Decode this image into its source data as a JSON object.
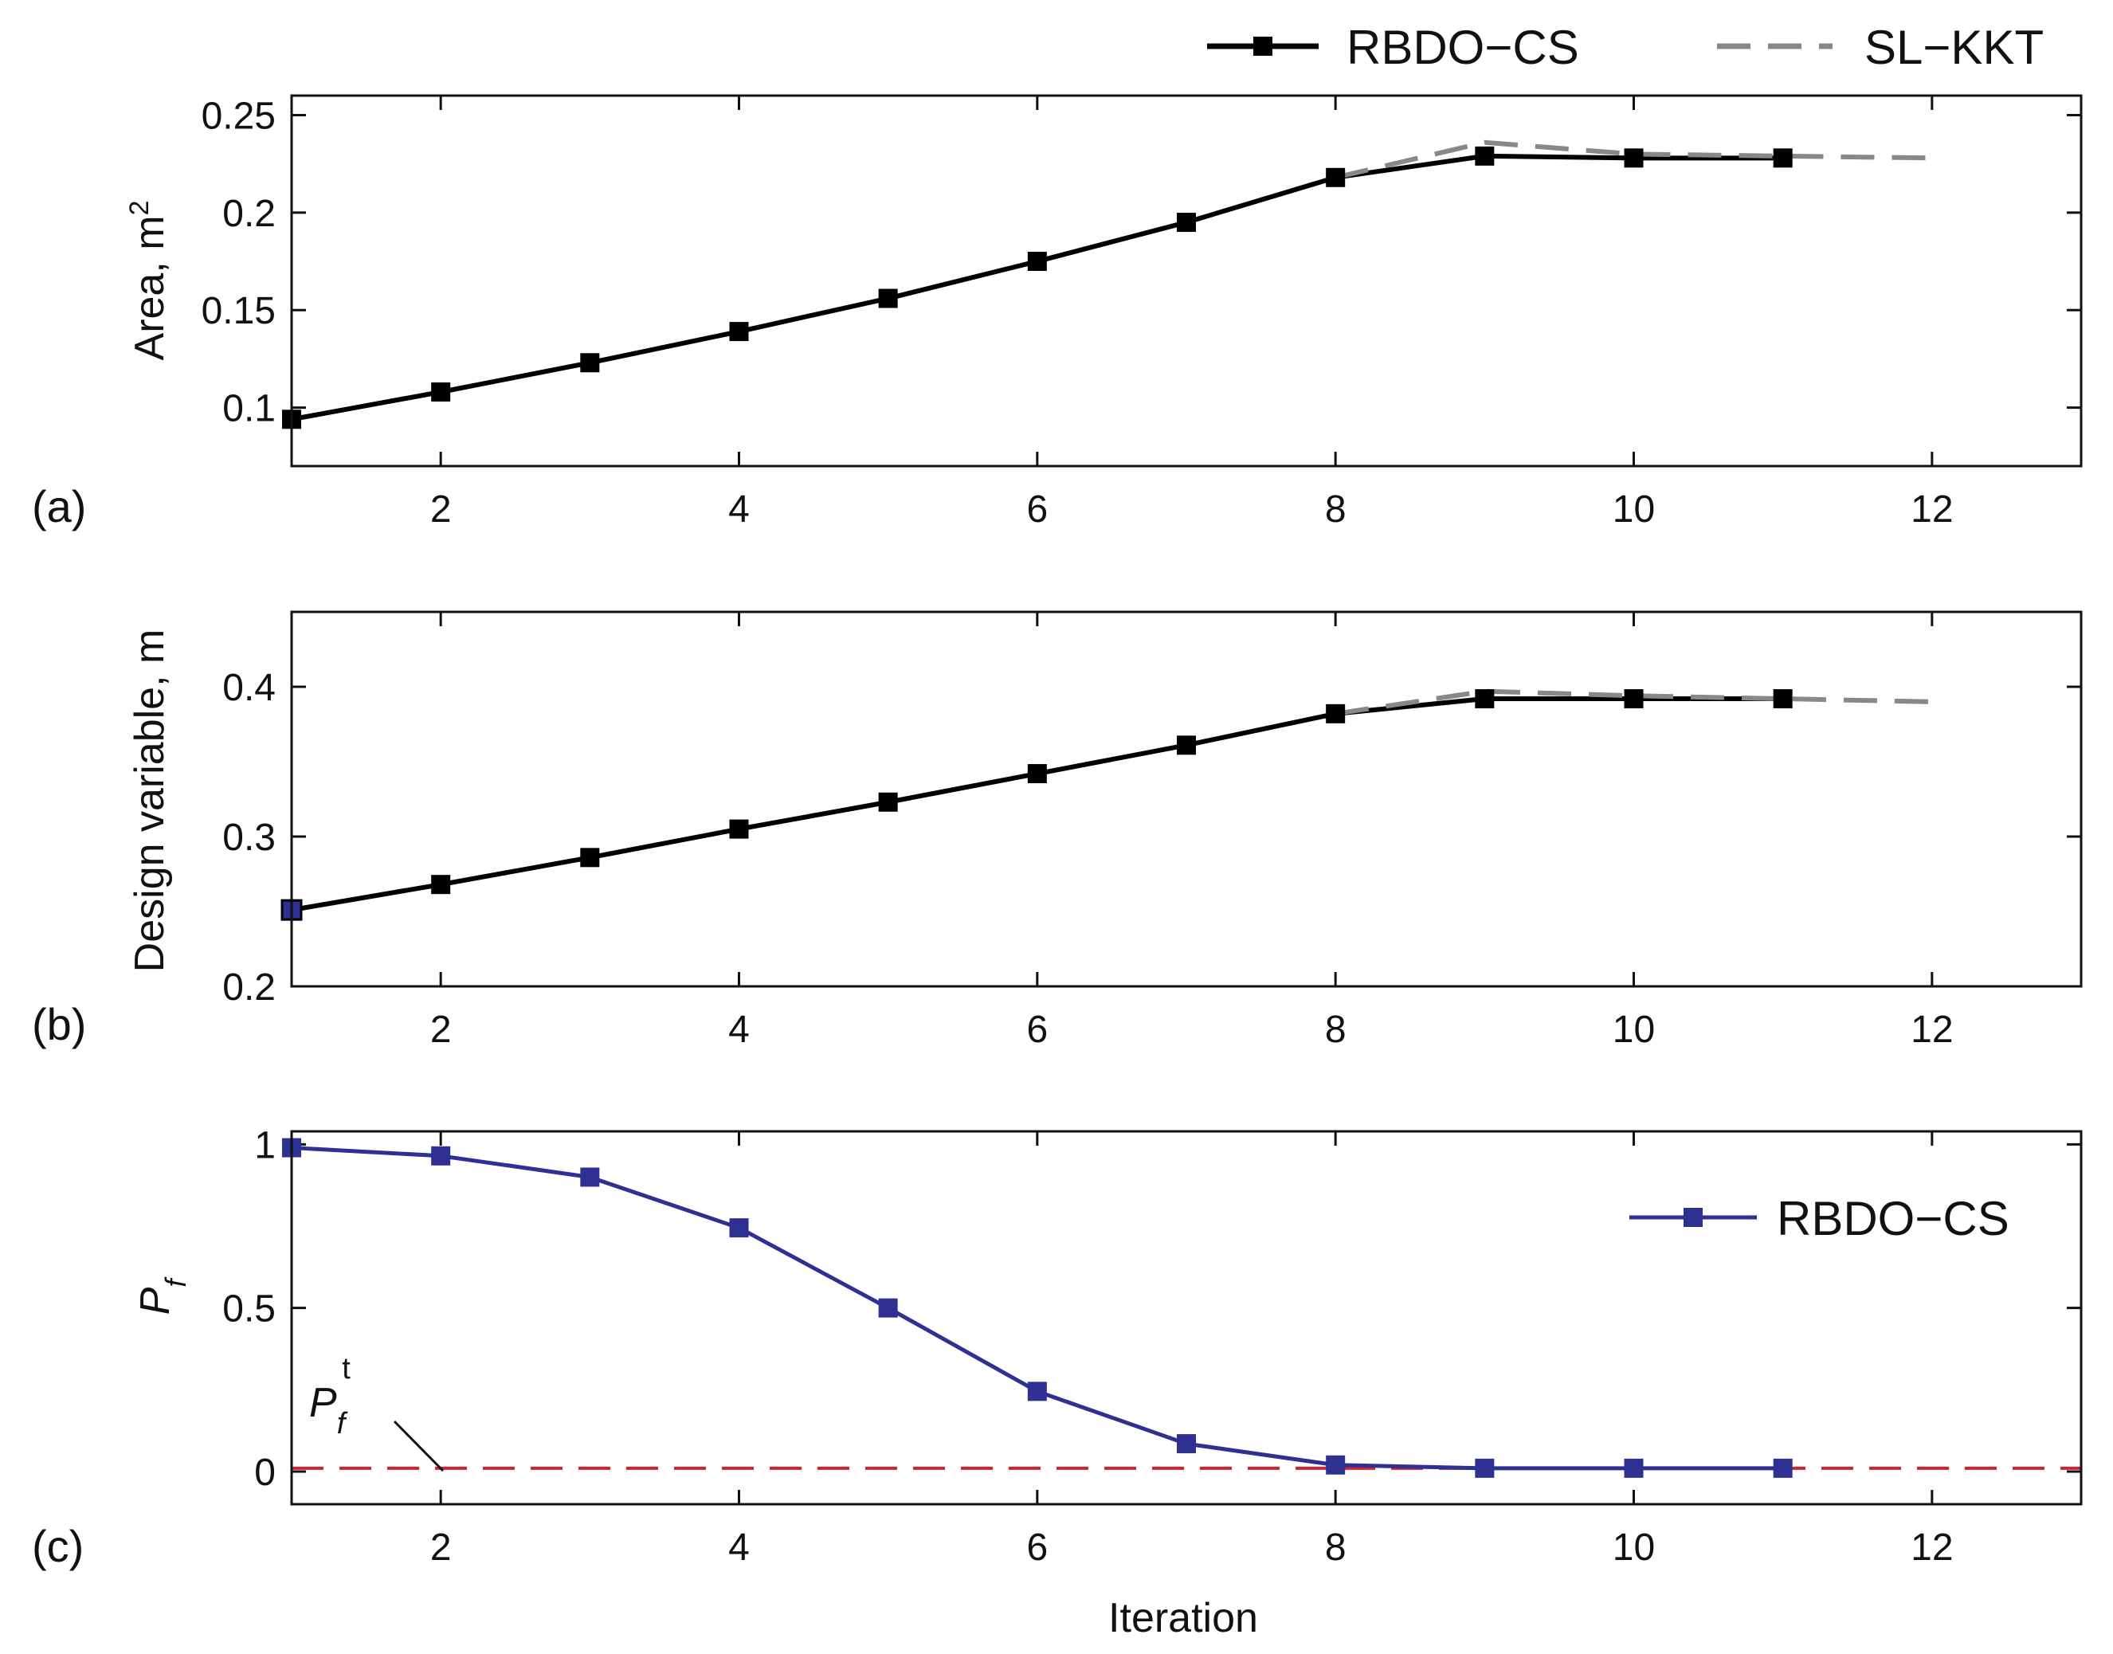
{
  "colors": {
    "rbdo": "#000000",
    "slkkt": "#888888",
    "pf": "#2e3192",
    "target": "#d62230",
    "axis": "#111111"
  },
  "legend_top": {
    "rbdo_label": "RBDO−CS",
    "slkkt_label": "SL−KKT"
  },
  "chart_data": [
    {
      "panel": "(a)",
      "type": "line",
      "xlabel": "",
      "ylabel_main": "Area, m",
      "ylabel_sup": "2",
      "xlim": [
        1,
        13
      ],
      "ylim": [
        0.07,
        0.26
      ],
      "xticks": [
        2,
        4,
        6,
        8,
        10,
        12
      ],
      "yticks": [
        0.1,
        0.15,
        0.2,
        0.25
      ],
      "ytick_labels": [
        "0.1",
        "0.15",
        "0.2",
        "0.25"
      ],
      "series": [
        {
          "name": "RBDO−CS",
          "style": "solid-square",
          "x": [
            1,
            2,
            3,
            4,
            5,
            6,
            7,
            8,
            9,
            10,
            11
          ],
          "values": [
            0.094,
            0.108,
            0.123,
            0.139,
            0.156,
            0.175,
            0.195,
            0.218,
            0.229,
            0.228,
            0.228
          ]
        },
        {
          "name": "SL−KKT",
          "style": "dashed",
          "x": [
            8,
            9,
            10,
            11,
            12
          ],
          "values": [
            0.218,
            0.236,
            0.23,
            0.229,
            0.228
          ]
        }
      ]
    },
    {
      "panel": "(b)",
      "type": "line",
      "xlabel": "",
      "ylabel_main": "Design variable, m",
      "ylabel_sup": "",
      "xlim": [
        1,
        13
      ],
      "ylim": [
        0.2,
        0.45
      ],
      "xticks": [
        2,
        4,
        6,
        8,
        10,
        12
      ],
      "yticks": [
        0.2,
        0.3,
        0.4
      ],
      "ytick_labels": [
        "0.2",
        "0.3",
        "0.4"
      ],
      "series": [
        {
          "name": "RBDO−CS",
          "style": "solid-square",
          "x": [
            1,
            2,
            3,
            4,
            5,
            6,
            7,
            8,
            9,
            10,
            11
          ],
          "values": [
            0.251,
            0.268,
            0.286,
            0.305,
            0.323,
            0.342,
            0.361,
            0.382,
            0.392,
            0.392,
            0.392
          ]
        },
        {
          "name": "SL−KKT",
          "style": "dashed",
          "x": [
            8,
            9,
            10,
            11,
            12
          ],
          "values": [
            0.382,
            0.397,
            0.394,
            0.392,
            0.39
          ]
        }
      ]
    },
    {
      "panel": "(c)",
      "type": "line",
      "xlabel": "Iteration",
      "ylabel_main": "P",
      "ylabel_sub": "f",
      "xlim": [
        1,
        13
      ],
      "ylim": [
        -0.1,
        1.04
      ],
      "xticks": [
        2,
        4,
        6,
        8,
        10,
        12
      ],
      "yticks": [
        0,
        0.5,
        1
      ],
      "ytick_labels": [
        "0",
        "0.5",
        "1"
      ],
      "legend_label": "RBDO−CS",
      "target_label_main": "P",
      "target_label_sub": "f",
      "target_label_sup": "t",
      "target_value": 0.01,
      "series": [
        {
          "name": "RBDO−CS",
          "style": "solid-square",
          "x": [
            1,
            2,
            3,
            4,
            5,
            6,
            7,
            8,
            9,
            10,
            11
          ],
          "values": [
            0.99,
            0.965,
            0.9,
            0.745,
            0.5,
            0.245,
            0.085,
            0.02,
            0.01,
            0.01,
            0.01
          ]
        }
      ]
    }
  ]
}
